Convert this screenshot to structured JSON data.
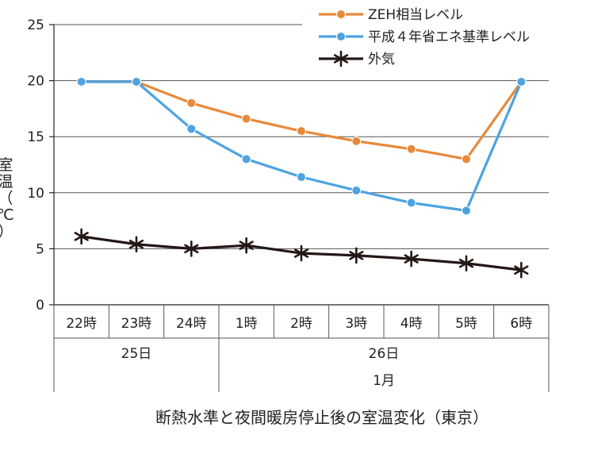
{
  "chart_data": {
    "type": "line",
    "title": "断熱水準と夜間暖房停止後の室温変化（東京）",
    "ylabel": "室温（℃）",
    "ylim": [
      0,
      25
    ],
    "yticks": [
      0,
      5,
      10,
      15,
      20,
      25
    ],
    "categories": [
      "22時",
      "23時",
      "24時",
      "1時",
      "2時",
      "3時",
      "4時",
      "5時",
      "6時"
    ],
    "day_groups": [
      {
        "label": "25日",
        "span": [
          0,
          2
        ]
      },
      {
        "label": "26日",
        "span": [
          3,
          8
        ]
      }
    ],
    "month_group": {
      "label": "1月",
      "span": [
        3,
        8
      ]
    },
    "grid": true,
    "legend_position": "top-right",
    "series": [
      {
        "name": "ZEH相当レベル",
        "color": "#e8893a",
        "marker": "circle",
        "values": [
          19.9,
          19.9,
          18.0,
          16.6,
          15.5,
          14.6,
          13.9,
          13.0,
          19.9
        ]
      },
      {
        "name": "平成４年省エネ基準レベル",
        "color": "#4ea3e0",
        "marker": "circle",
        "values": [
          19.9,
          19.9,
          15.7,
          13.0,
          11.4,
          10.2,
          9.1,
          8.4,
          19.9
        ]
      },
      {
        "name": "外気",
        "color": "#231815",
        "marker": "asterisk",
        "values": [
          6.1,
          5.4,
          5.0,
          5.3,
          4.6,
          4.4,
          4.1,
          3.7,
          3.1
        ]
      }
    ]
  }
}
